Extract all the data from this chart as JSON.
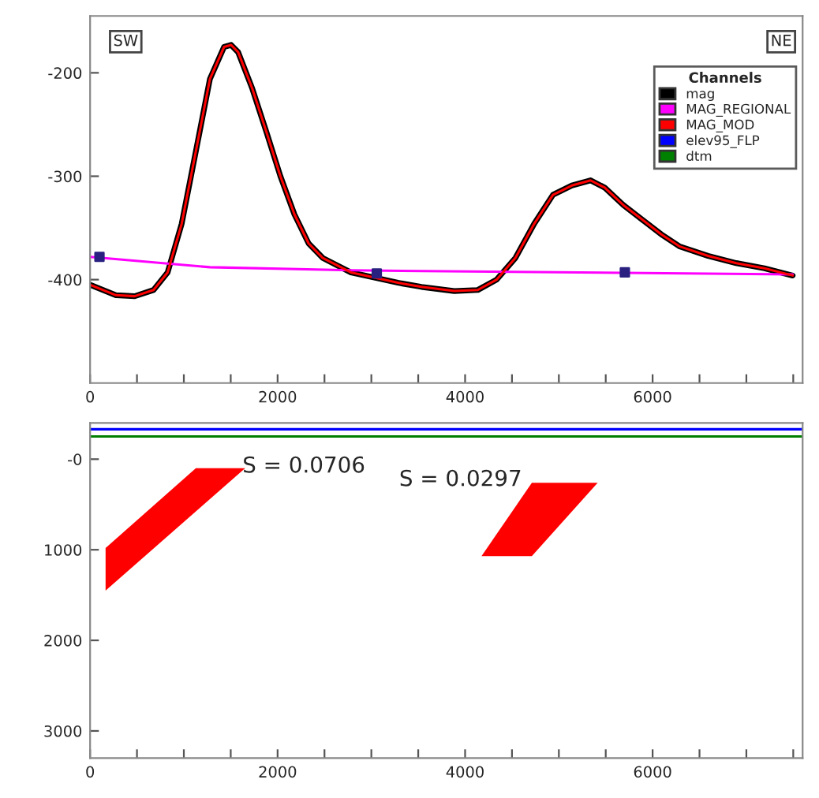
{
  "chart_data": [
    {
      "type": "line",
      "legend_title": "Channels",
      "legend": "top right",
      "xlim": [
        0,
        7600
      ],
      "ylim": [
        -500,
        -145
      ],
      "xticks": [
        0,
        {
          "value": 500,
          "label": null
        },
        {
          "value": 1000,
          "label": null
        },
        {
          "value": 1500,
          "label": null
        },
        2000,
        {
          "value": 2500,
          "label": null
        },
        {
          "value": 3000,
          "label": null
        },
        {
          "value": 3500,
          "label": null
        },
        4000,
        {
          "value": 4500,
          "label": null
        },
        {
          "value": 5000,
          "label": null
        },
        {
          "value": 5500,
          "label": null
        },
        6000,
        {
          "value": 6500,
          "label": null
        },
        {
          "value": 7000,
          "label": null
        },
        {
          "value": 7500,
          "label": null
        }
      ],
      "yticks": [
        {
          "value": -200,
          "label": "-200"
        },
        {
          "value": -300,
          "label": "-300"
        },
        {
          "value": -400,
          "label": "-400"
        }
      ],
      "annotations": [
        "SW",
        "NE"
      ],
      "x": [
        0,
        275,
        476,
        677,
        827,
        977,
        1128,
        1278,
        1429,
        1504,
        1579,
        1729,
        1880,
        2030,
        2180,
        2331,
        2481,
        2782,
        3033,
        3283,
        3534,
        3885,
        4135,
        4336,
        4537,
        4737,
        4937,
        5138,
        5338,
        5489,
        5689,
        5890,
        6090,
        6291,
        6591,
        6892,
        7193,
        7494
      ],
      "series": [
        {
          "name": "mag",
          "color": "#000000",
          "values": [
            -405,
            -415,
            -416,
            -410,
            -393,
            -346,
            -276,
            -206,
            -175,
            -173,
            -180,
            -215,
            -257,
            -300,
            -337,
            -365,
            -379,
            -393,
            -398,
            -403,
            -407,
            -411,
            -410,
            -400,
            -379,
            -346,
            -318,
            -309,
            -304,
            -311,
            -328,
            -342,
            -356,
            -368,
            -377,
            -384,
            -389,
            -396
          ]
        },
        {
          "name": "MAG_REGIONAL",
          "color": "#ff00ff",
          "x": [
            0,
            1278,
            2782,
            7494
          ],
          "values": [
            -378,
            -388,
            -391,
            -395
          ]
        },
        {
          "name": "MAG_MOD",
          "color": "#ff0000",
          "values": [
            -405,
            -415,
            -416,
            -410,
            -393,
            -346,
            -276,
            -206,
            -175,
            -173,
            -180,
            -215,
            -257,
            -300,
            -337,
            -365,
            -379,
            -393,
            -398,
            -403,
            -407,
            -411,
            -410,
            -400,
            -379,
            -346,
            -318,
            -309,
            -304,
            -311,
            -328,
            -342,
            -356,
            -368,
            -377,
            -384,
            -389,
            -396
          ]
        },
        {
          "type": "scatter",
          "color": "#2a2080",
          "marker": "square",
          "x": [
            100,
            3058,
            5704
          ],
          "values": [
            -378,
            -394,
            -393
          ]
        }
      ]
    },
    {
      "type": "area",
      "legend": "top right",
      "xlim": [
        0,
        7600
      ],
      "ylim": [
        3300,
        -400
      ],
      "xticks": [
        0,
        {
          "value": 500,
          "label": null
        },
        {
          "value": 1000,
          "label": null
        },
        {
          "value": 1500,
          "label": null
        },
        2000,
        {
          "value": 2500,
          "label": null
        },
        {
          "value": 3000,
          "label": null
        },
        {
          "value": 3500,
          "label": null
        },
        4000,
        {
          "value": 4500,
          "label": null
        },
        {
          "value": 5000,
          "label": null
        },
        {
          "value": 5500,
          "label": null
        },
        6000,
        {
          "value": 6500,
          "label": null
        },
        {
          "value": 7000,
          "label": null
        },
        {
          "value": 7500,
          "label": null
        }
      ],
      "yticks": [
        {
          "value": 0,
          "label": "-0"
        },
        1000,
        2000,
        3000
      ],
      "annotations": [
        "S = 0.0706",
        "S = 0.0297"
      ],
      "series": [
        {
          "name": "elev95_FLP",
          "type": "line",
          "color": "#0000ff",
          "x": [
            0,
            7600
          ],
          "values": [
            -330,
            -330
          ]
        },
        {
          "name": "dtm",
          "type": "line",
          "color": "#008000",
          "x": [
            0,
            7600
          ],
          "values": [
            -250,
            -250
          ]
        },
        {
          "color": "#ff0000",
          "x": [
            1128,
            1654,
            165,
            165
          ],
          "values": [
            100,
            100,
            1450,
            980
          ]
        },
        {
          "color": "#ff0000",
          "x": [
            4712,
            5414,
            4712,
            4175
          ],
          "values": [
            260,
            260,
            1070,
            1070
          ]
        }
      ]
    }
  ]
}
